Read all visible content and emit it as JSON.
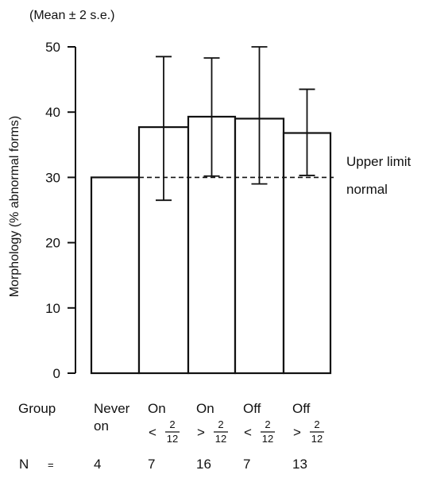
{
  "chart_data": {
    "type": "bar",
    "title": "(Mean ± 2 s.e.)",
    "ylabel": "Morphology (% abnormal forms)",
    "ylim": [
      0,
      50
    ],
    "yticks": [
      "0",
      "10",
      "20",
      "30",
      "40",
      "50"
    ],
    "grid": false,
    "legend": "none",
    "group_label": "Group",
    "n_label": "N",
    "n_equals": "=",
    "reference_line": {
      "value": 30,
      "label_line1": "Upper limit",
      "label_line2": "normal"
    },
    "categories": [
      {
        "line1": "Never",
        "line2": "on",
        "op": "",
        "num": "",
        "den": ""
      },
      {
        "line1": "On",
        "line2": "",
        "op": "<",
        "num": "2",
        "den": "12"
      },
      {
        "line1": "On",
        "line2": "",
        "op": ">",
        "num": "2",
        "den": "12"
      },
      {
        "line1": "Off",
        "line2": "",
        "op": "<",
        "num": "2",
        "den": "12"
      },
      {
        "line1": "Off",
        "line2": "",
        "op": ">",
        "num": "2",
        "den": "12"
      }
    ],
    "values": [
      30,
      37.7,
      39.3,
      39.0,
      36.8
    ],
    "error_low": [
      null,
      26.5,
      30.2,
      29.0,
      30.3
    ],
    "error_high": [
      null,
      48.5,
      48.3,
      50.0,
      43.5
    ],
    "n": [
      "4",
      "7",
      "16",
      "7",
      "13"
    ]
  }
}
